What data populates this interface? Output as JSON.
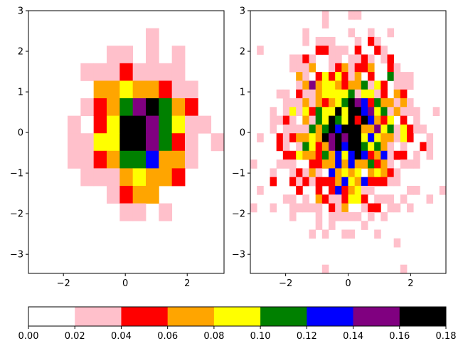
{
  "chart_data": {
    "type": "heatmap",
    "colormap": {
      "colors": [
        "#ffffff",
        "#ffc0cb",
        "#ff0000",
        "#ffa500",
        "#ffff00",
        "#008000",
        "#0000ff",
        "#800080",
        "#000000"
      ],
      "names": [
        "white",
        "pink",
        "red",
        "orange",
        "yellow",
        "green",
        "blue",
        "purple",
        "black"
      ],
      "bounds": [
        0.0,
        0.02,
        0.04,
        0.06,
        0.08,
        0.1,
        0.12,
        0.14,
        0.16,
        0.18
      ]
    },
    "colorbar": {
      "orientation": "horizontal",
      "ticks": [
        0.0,
        0.02,
        0.04,
        0.06,
        0.08,
        0.1,
        0.12,
        0.14,
        0.16,
        0.18
      ],
      "tick_labels": [
        "0.00",
        "0.02",
        "0.04",
        "0.06",
        "0.08",
        "0.10",
        "0.12",
        "0.14",
        "0.16",
        "0.18"
      ]
    },
    "panels": [
      {
        "name": "left-histogram",
        "bins": [
          15,
          15
        ],
        "xlim": [
          -3.13,
          3.19
        ],
        "ylim": [
          -3.47,
          3.0
        ],
        "xticks": [
          -2,
          0,
          2
        ],
        "xtick_labels": [
          "−2",
          "0",
          "2"
        ],
        "yticks": [
          -3,
          -2,
          -1,
          0,
          1,
          2,
          3
        ],
        "ytick_labels": [
          "−3",
          "−2",
          "−1",
          "0",
          "1",
          "2",
          "3"
        ],
        "level_rows": [
          "000000000000000",
          "000000000100000",
          "000000110101000",
          "000011121111000",
          "000003343321100",
          "000012357853200",
          "000102488754110",
          "000114488752101",
          "000112355633100",
          "000011134332000",
          "000000123300000",
          "000000011010000",
          "000000000000000",
          "000000000000000",
          "000000000000000"
        ]
      },
      {
        "name": "right-histogram",
        "bins": [
          30,
          30
        ],
        "xlim": [
          -3.13,
          3.13
        ],
        "ylim": [
          -3.47,
          3.0
        ],
        "xticks": [
          -2,
          0,
          2
        ],
        "xtick_labels": [
          "−2",
          "0",
          "2"
        ],
        "yticks": [
          -3,
          -2,
          -1,
          0,
          1,
          2,
          3
        ],
        "ytick_labels": [
          "−3",
          "−2",
          "−1",
          "0",
          "1",
          "2",
          "3"
        ],
        "level_rows": [
          "000000000001000110000000000000",
          "000000000001000000000000000000",
          "000000001000000100100100000000",
          "000000001011100010210000000000",
          "010000000022111020021000000000",
          "000000112100110112101200000000",
          "000000111300123122300210000000",
          "000000031024242130200511100000",
          "000000013734432335142011100000",
          "000011021134444514412032000000",
          "000001113132345876253313100000",
          "000101414254484886745131110010",
          "000112103154854828632402010000",
          "000101111535868883374514211000",
          "010021233438787884643314200100",
          "000021015423786885453101002100",
          "000002243325364686236122010100",
          "100011100223363633523101110000",
          "000100121310634340343210000000",
          "000200212122236436222110000000",
          "010000020020262341100000110001",
          "000001101032112442011101000100",
          "100100111110213001220110100000",
          "000000100010111110101000000000",
          "000000000010100001000000000000",
          "000000000101001100010000000000",
          "000000000000000000000010000000",
          "000000000000000000000000000000",
          "000000000000000000000000000000",
          "000000000001000000000001000000"
        ]
      }
    ]
  }
}
